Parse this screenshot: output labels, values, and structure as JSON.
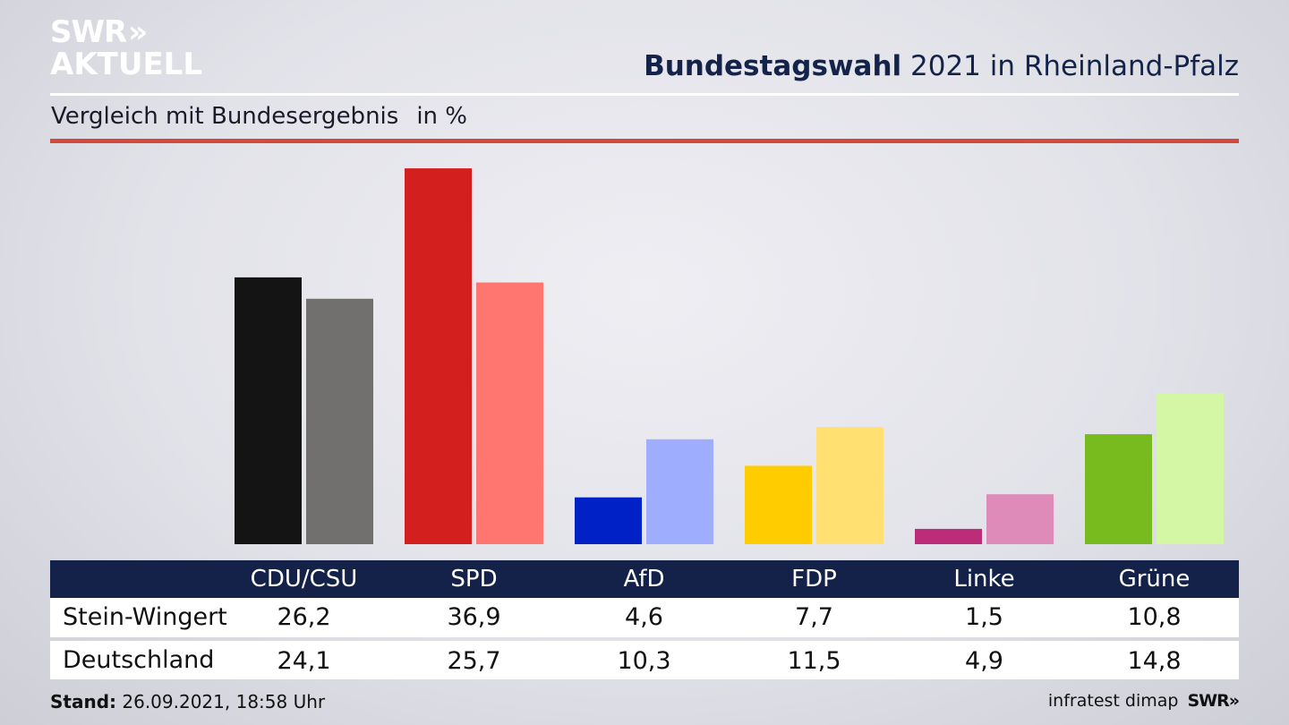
{
  "logo": {
    "line1": "SWR",
    "arrows": "»",
    "line2": "AKTUELL"
  },
  "header": {
    "title_bold": "Bundestagswahl",
    "title_rest": " 2021 in Rheinland-Pfalz",
    "subtitle": "Vergleich mit Bundesergebnis",
    "unit": "in %"
  },
  "chart_data": {
    "type": "bar",
    "title": "Bundestagswahl 2021 in Rheinland-Pfalz",
    "subtitle": "Vergleich mit Bundesergebnis",
    "ylabel": "in %",
    "ylim": [
      0,
      37
    ],
    "categories": [
      "CDU/CSU",
      "SPD",
      "AfD",
      "FDP",
      "Linke",
      "Grüne"
    ],
    "series": [
      {
        "name": "Stein-Wingert",
        "values": [
          26.2,
          36.9,
          4.6,
          7.7,
          1.5,
          10.8
        ],
        "colors": [
          "#141414",
          "#d41f1f",
          "#0021c6",
          "#ffcc00",
          "#bd2c78",
          "#77bb1f"
        ]
      },
      {
        "name": "Deutschland",
        "values": [
          24.1,
          25.7,
          10.3,
          11.5,
          4.9,
          14.8
        ],
        "colors": [
          "#72706e",
          "#ff7570",
          "#9fadff",
          "#ffe070",
          "#de8bb9",
          "#d4f7a6"
        ]
      }
    ],
    "value_labels": [
      [
        "26,2",
        "36,9",
        "4,6",
        "7,7",
        "1,5",
        "10,8"
      ],
      [
        "24,1",
        "25,7",
        "10,3",
        "11,5",
        "4,9",
        "14,8"
      ]
    ],
    "grid": false,
    "legend": "table-below"
  },
  "footer": {
    "stand_label": "Stand:",
    "stand_value": " 26.09.2021, 18:58 Uhr",
    "source": "infratest dimap",
    "brand": "SWR»"
  }
}
